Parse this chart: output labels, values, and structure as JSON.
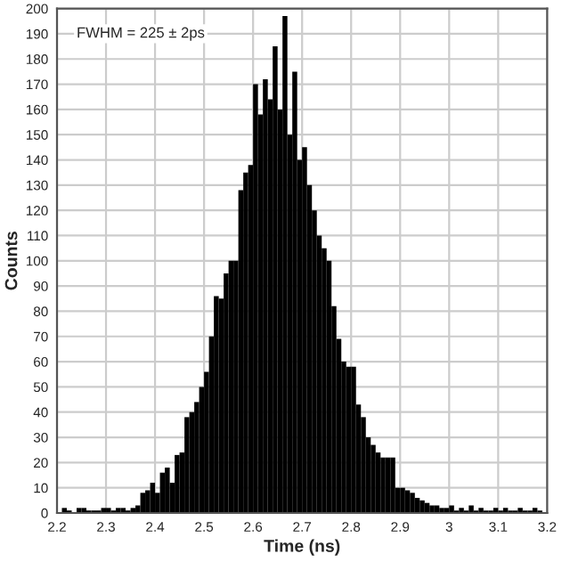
{
  "chart_data": {
    "type": "histogram",
    "xlabel": "Time (ns)",
    "ylabel": "Counts",
    "annotations": [
      "FWHM = 225 ± 2ps"
    ],
    "bins": [
      2.2,
      2.21,
      2.22,
      2.23,
      2.24,
      2.25,
      2.26,
      2.27,
      2.28,
      2.29,
      2.3,
      2.31,
      2.32,
      2.33,
      2.34,
      2.35,
      2.36,
      2.37,
      2.38,
      2.39,
      2.4,
      2.41,
      2.42,
      2.43,
      2.44,
      2.45,
      2.46,
      2.47,
      2.48,
      2.49,
      2.5,
      2.51,
      2.52,
      2.53,
      2.54,
      2.55,
      2.56,
      2.57,
      2.58,
      2.59,
      2.6,
      2.61,
      2.62,
      2.63,
      2.64,
      2.65,
      2.66,
      2.67,
      2.68,
      2.69,
      2.7,
      2.71,
      2.72,
      2.73,
      2.74,
      2.75,
      2.76,
      2.77,
      2.78,
      2.79,
      2.8,
      2.81,
      2.82,
      2.83,
      2.84,
      2.85,
      2.86,
      2.87,
      2.88,
      2.89,
      2.9,
      2.91,
      2.92,
      2.93,
      2.94,
      2.95,
      2.96,
      2.97,
      2.98,
      2.99,
      3.0,
      3.01,
      3.02,
      3.03,
      3.04,
      3.05,
      3.06,
      3.07,
      3.08,
      3.09,
      3.1,
      3.11,
      3.12,
      3.13,
      3.14,
      3.15,
      3.16,
      3.17,
      3.18,
      3.19,
      3.2
    ],
    "values": [
      0,
      2,
      1,
      0,
      2,
      2,
      1,
      1,
      1,
      2,
      2,
      1,
      2,
      2,
      1,
      2,
      3,
      8,
      9,
      12,
      8,
      16,
      18,
      12,
      23,
      24,
      38,
      40,
      44,
      50,
      56,
      70,
      86,
      85,
      95,
      100,
      100,
      128,
      135,
      138,
      170,
      158,
      172,
      164,
      185,
      160,
      197,
      150,
      175,
      140,
      145,
      130,
      120,
      110,
      105,
      100,
      82,
      69,
      60,
      58,
      58,
      43,
      38,
      30,
      27,
      24,
      22,
      22,
      22,
      10,
      10,
      9,
      8,
      6,
      5,
      4,
      3,
      3,
      2,
      2,
      3,
      1,
      2,
      1,
      3,
      1,
      2,
      1,
      1,
      2,
      1,
      2,
      1,
      1,
      2,
      1,
      1,
      2,
      1,
      null
    ],
    "color": "#000000",
    "xlim": [
      2.2,
      3.2
    ],
    "xticks": [
      2.2,
      2.3,
      2.4,
      2.5,
      2.6,
      2.7,
      2.8,
      2.9,
      3,
      3.1,
      3.2
    ],
    "ylim": [
      0,
      200
    ],
    "yticks": [
      0,
      10,
      20,
      30,
      40,
      50,
      60,
      70,
      80,
      90,
      100,
      110,
      120,
      130,
      140,
      150,
      160,
      170,
      180,
      190,
      200
    ],
    "grid": true
  }
}
